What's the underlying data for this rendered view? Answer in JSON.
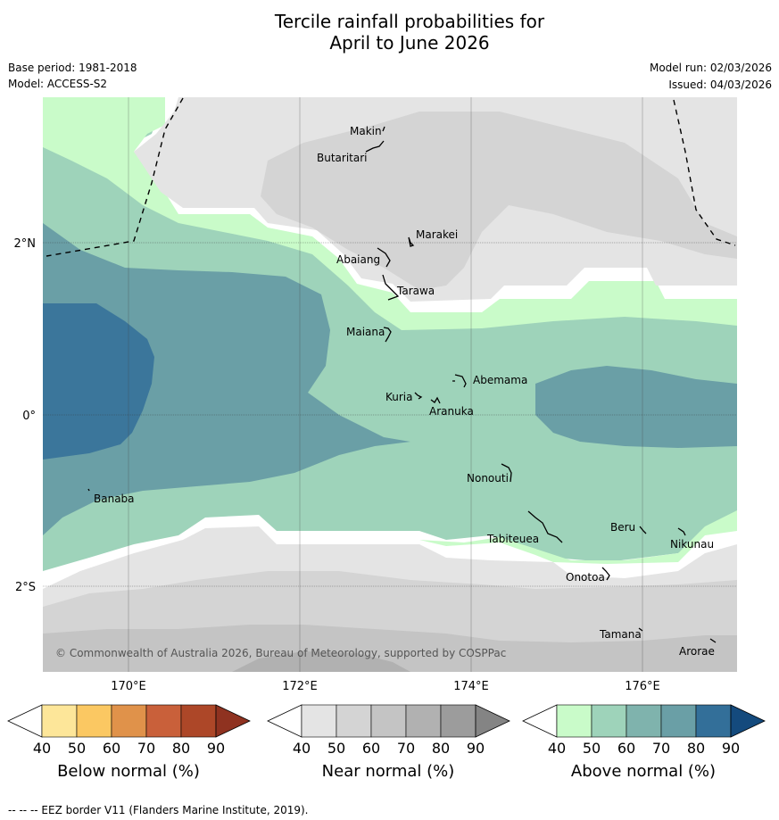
{
  "title": {
    "line1": "Tercile rainfall probabilities for",
    "line2": "April to June 2026"
  },
  "meta": {
    "base_period": "Base period: 1981-2018",
    "model": "Model: ACCESS-S2",
    "model_run": "Model run: 02/03/2026",
    "issued": "Issued: 04/03/2026"
  },
  "map": {
    "lat_labels": [
      "2°N",
      "0°",
      "2°S"
    ],
    "lon_labels": [
      "170°E",
      "172°E",
      "174°E",
      "176°E"
    ],
    "copyright": "© Commonwealth of Australia 2026, Bureau of Meteorology, supported by COSPPac",
    "islands": [
      {
        "name": "Makin",
        "lat": 3.2,
        "lon": 172.9
      },
      {
        "name": "Butaritari",
        "lat": 3.0,
        "lon": 172.8
      },
      {
        "name": "Marakei",
        "lat": 2.0,
        "lon": 173.3
      },
      {
        "name": "Abaiang",
        "lat": 1.8,
        "lon": 172.95
      },
      {
        "name": "Tarawa",
        "lat": 1.45,
        "lon": 173.0
      },
      {
        "name": "Maiana",
        "lat": 0.95,
        "lon": 173.0
      },
      {
        "name": "Abemama",
        "lat": 0.4,
        "lon": 173.85
      },
      {
        "name": "Kuria",
        "lat": 0.23,
        "lon": 173.4
      },
      {
        "name": "Aranuka",
        "lat": 0.16,
        "lon": 173.6
      },
      {
        "name": "Banaba",
        "lat": -0.88,
        "lon": 169.54
      },
      {
        "name": "Nonouti",
        "lat": -0.67,
        "lon": 174.4
      },
      {
        "name": "Tabiteuea",
        "lat": -1.2,
        "lon": 174.8
      },
      {
        "name": "Beru",
        "lat": -1.33,
        "lon": 175.98
      },
      {
        "name": "Nikunau",
        "lat": -1.35,
        "lon": 176.45
      },
      {
        "name": "Onotoa",
        "lat": -1.8,
        "lon": 175.55
      },
      {
        "name": "Tamana",
        "lat": -2.5,
        "lon": 175.98
      },
      {
        "name": "Arorae",
        "lat": -2.64,
        "lon": 176.82
      }
    ]
  },
  "colorbars": [
    {
      "title": "Below normal (%)",
      "ticks": [
        "40",
        "50",
        "60",
        "70",
        "80",
        "90"
      ],
      "colors": [
        "#ffffff",
        "#fde699",
        "#fbc862",
        "#e0924a",
        "#c9603a",
        "#ad4728",
        "#8f3220"
      ]
    },
    {
      "title": "Near normal (%)",
      "ticks": [
        "40",
        "50",
        "60",
        "70",
        "80",
        "90"
      ],
      "colors": [
        "#ffffff",
        "#e4e4e4",
        "#d4d4d4",
        "#c4c4c4",
        "#b1b1b1",
        "#9c9c9c",
        "#848484"
      ]
    },
    {
      "title": "Above normal (%)",
      "ticks": [
        "40",
        "50",
        "60",
        "70",
        "80",
        "90"
      ],
      "colors": [
        "#ffffff",
        "#c9fbc9",
        "#9ed3ba",
        "#7fb3ad",
        "#6a9fa6",
        "#336f99",
        "#144a7d"
      ]
    }
  ],
  "legend": {
    "eez": "--  --  -- EEZ border V11 (Flanders Marine Institute, 2019)."
  }
}
